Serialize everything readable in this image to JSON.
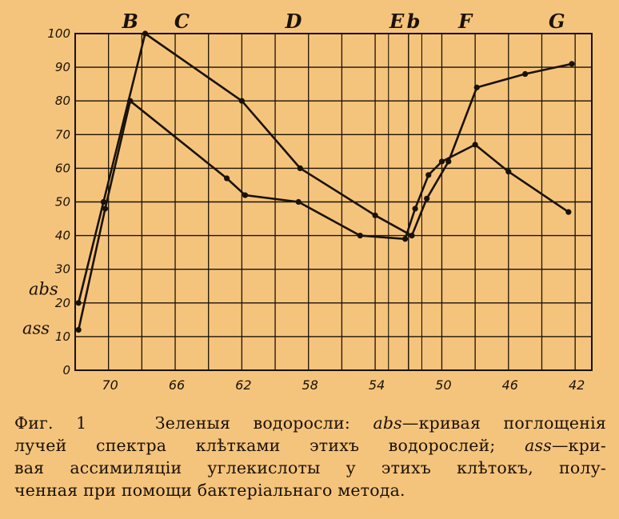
{
  "chart_data": {
    "type": "line",
    "x_tick_labels": [
      "70",
      "66",
      "62",
      "58",
      "54",
      "50",
      "46",
      "42"
    ],
    "x_ticks": [
      70,
      66,
      62,
      58,
      54,
      50,
      46,
      42
    ],
    "xlim": [
      72,
      41
    ],
    "y_tick_labels": [
      "0",
      "10",
      "20",
      "30",
      "40",
      "50",
      "60",
      "70",
      "80",
      "90",
      "100"
    ],
    "ylim": [
      0,
      100
    ],
    "spectral_lines": [
      {
        "label": "B",
        "x": 68.7
      },
      {
        "label": "C",
        "x": 65.6
      },
      {
        "label": "D",
        "x": 58.9
      },
      {
        "label": "E",
        "x": 52.7
      },
      {
        "label": "b",
        "x": 51.7
      },
      {
        "label": "F",
        "x": 48.6
      },
      {
        "label": "G",
        "x": 43.1
      }
    ],
    "series": [
      {
        "name": "abs",
        "points": [
          [
            71.8,
            20
          ],
          [
            70.3,
            50
          ],
          [
            67.8,
            100
          ],
          [
            62.0,
            80
          ],
          [
            58.5,
            60
          ],
          [
            54.0,
            46
          ],
          [
            51.8,
            40
          ],
          [
            50.9,
            51
          ],
          [
            49.6,
            62
          ],
          [
            47.9,
            84
          ],
          [
            45.0,
            88
          ],
          [
            42.2,
            91
          ]
        ]
      },
      {
        "name": "ass",
        "points": [
          [
            71.8,
            12
          ],
          [
            70.2,
            48
          ],
          [
            68.7,
            80
          ],
          [
            62.9,
            57
          ],
          [
            61.8,
            52
          ],
          [
            58.6,
            50
          ],
          [
            54.9,
            40
          ],
          [
            52.2,
            39
          ],
          [
            51.6,
            48
          ],
          [
            50.8,
            58
          ],
          [
            50.0,
            62
          ],
          [
            48.0,
            67
          ],
          [
            46.0,
            59
          ],
          [
            42.4,
            47
          ]
        ]
      }
    ],
    "series_labels": [
      "abs",
      "ass"
    ],
    "grid": true
  },
  "caption": {
    "fig_label": "Фиг. 1",
    "line1_a": "Зеленыя водоросли:",
    "abs": "abs",
    "line1_b": "—кривая поглощенія",
    "line2_a": "лучей спектра клѣтками этихъ водорослей;",
    "ass": "ass",
    "line2_b": "—кри-",
    "line3": "вая ассимиляціи углекислоты у этихъ клѣтокъ, полу-",
    "line4": "ченная при помощи бактеріальнаго метода."
  }
}
